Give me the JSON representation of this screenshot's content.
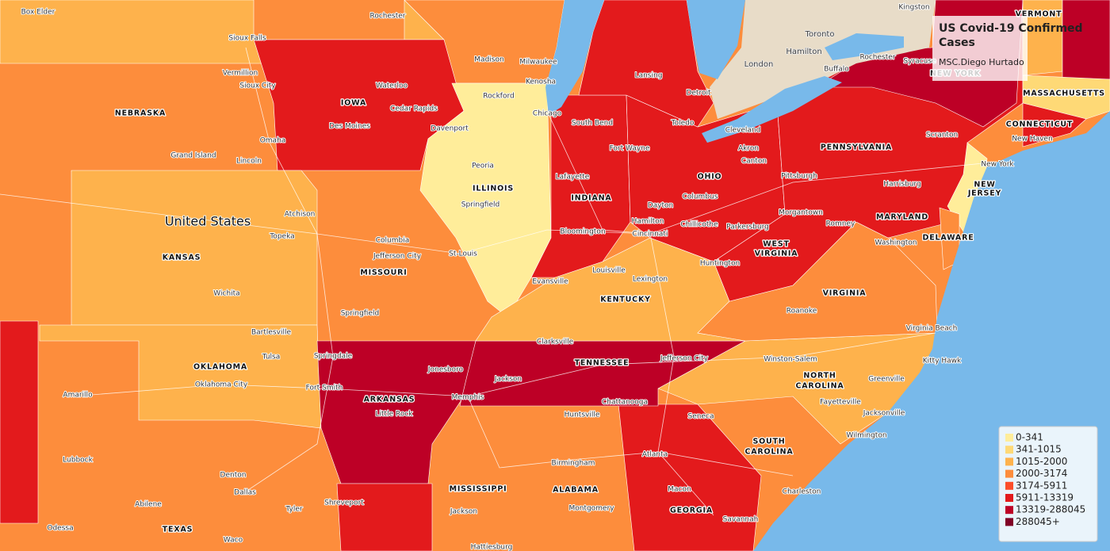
{
  "title": "US Covid-19 Confirmed Cases",
  "author": "MSC.Diego Hurtado",
  "legend": {
    "items": [
      {
        "label": "0-341",
        "color": "#ffed9a"
      },
      {
        "label": "341-1015",
        "color": "#fed976"
      },
      {
        "label": "1015-2000",
        "color": "#feb24c"
      },
      {
        "label": "2000-3174",
        "color": "#fd8d3c"
      },
      {
        "label": "3174-5911",
        "color": "#fc4e2a"
      },
      {
        "label": "5911-13319",
        "color": "#e31a1c"
      },
      {
        "label": "13319-288045",
        "color": "#bd0026"
      },
      {
        "label": "288045+",
        "color": "#800026"
      }
    ]
  },
  "map": {
    "country": "United States",
    "states": [
      "NEBRASKA",
      "IOWA",
      "ILLINOIS",
      "INDIANA",
      "OHIO",
      "PENNSYLVANIA",
      "NEW",
      "JERSEY",
      "MARYLAND",
      "DELAWARE",
      "WEST",
      "VIRGINIA",
      "VIRGINIA",
      "KENTUCKY",
      "TENNESSEE",
      "NORTH",
      "CAROLINA",
      "SOUTH",
      "CAROLINA",
      "GEORGIA",
      "ALABAMA",
      "MISSISSIPPI",
      "ARKANSAS",
      "MISSOURI",
      "KANSAS",
      "OKLAHOMA",
      "TEXAS",
      "MASSACHUSETTS",
      "CONNECTICUT",
      "VERMONT",
      "NEW YORK"
    ],
    "cities": [
      "Box Elder",
      "Rochester",
      "Sioux Falls",
      "Madison",
      "Milwaukee",
      "Kenosha",
      "Rockford",
      "Chicago",
      "Vermillion",
      "Sioux City",
      "Waterloo",
      "Cedar Rapids",
      "Des Moines",
      "Davenport",
      "Omaha",
      "Grand Island",
      "Lincoln",
      "Peoria",
      "Springfield",
      "Atchison",
      "Topeka",
      "Columbia",
      "Jefferson City",
      "St-Louis",
      "Springfield",
      "Wichita",
      "Bartlesville",
      "Tulsa",
      "Oklahoma City",
      "Amarillo",
      "Lubbock",
      "Denton",
      "Dallas",
      "Abilene",
      "Odessa",
      "Tyler",
      "Waco",
      "Shreveport",
      "Fort Smith",
      "Springdale",
      "Little Rock",
      "Jonesboro",
      "Memphis",
      "Jackson",
      "Clarksville",
      "Jefferson City",
      "Huntsville",
      "Chattanooga",
      "Birmingham",
      "Montgomery",
      "Hattiesburg",
      "Jackson",
      "Atlanta",
      "Macon",
      "Savannah",
      "Seneca",
      "Charleston",
      "Wilmington",
      "Jacksonville",
      "Fayetteville",
      "Greenville",
      "Kitty Hawk",
      "Winston-Salem",
      "Roanoke",
      "Virginia Beach",
      "Washington",
      "Romney",
      "Morgantown",
      "Huntington",
      "Parkersburg",
      "Chillicothe",
      "Columbus",
      "Dayton",
      "Hamilton",
      "Cincinnati",
      "Louisville",
      "Lexington",
      "Evansville",
      "Bloomington",
      "Lafayette",
      "Fort Wayne",
      "South Bend",
      "Lansing",
      "Detroit",
      "Toledo",
      "Cleveland",
      "Akron",
      "Canton",
      "Pittsburgh",
      "Harrisburg",
      "Scranton",
      "New York",
      "New Haven",
      "Buffalo",
      "Rochester",
      "Syracuse",
      "Kingston"
    ],
    "canada_cities": [
      "Toronto",
      "Hamilton",
      "London"
    ]
  }
}
